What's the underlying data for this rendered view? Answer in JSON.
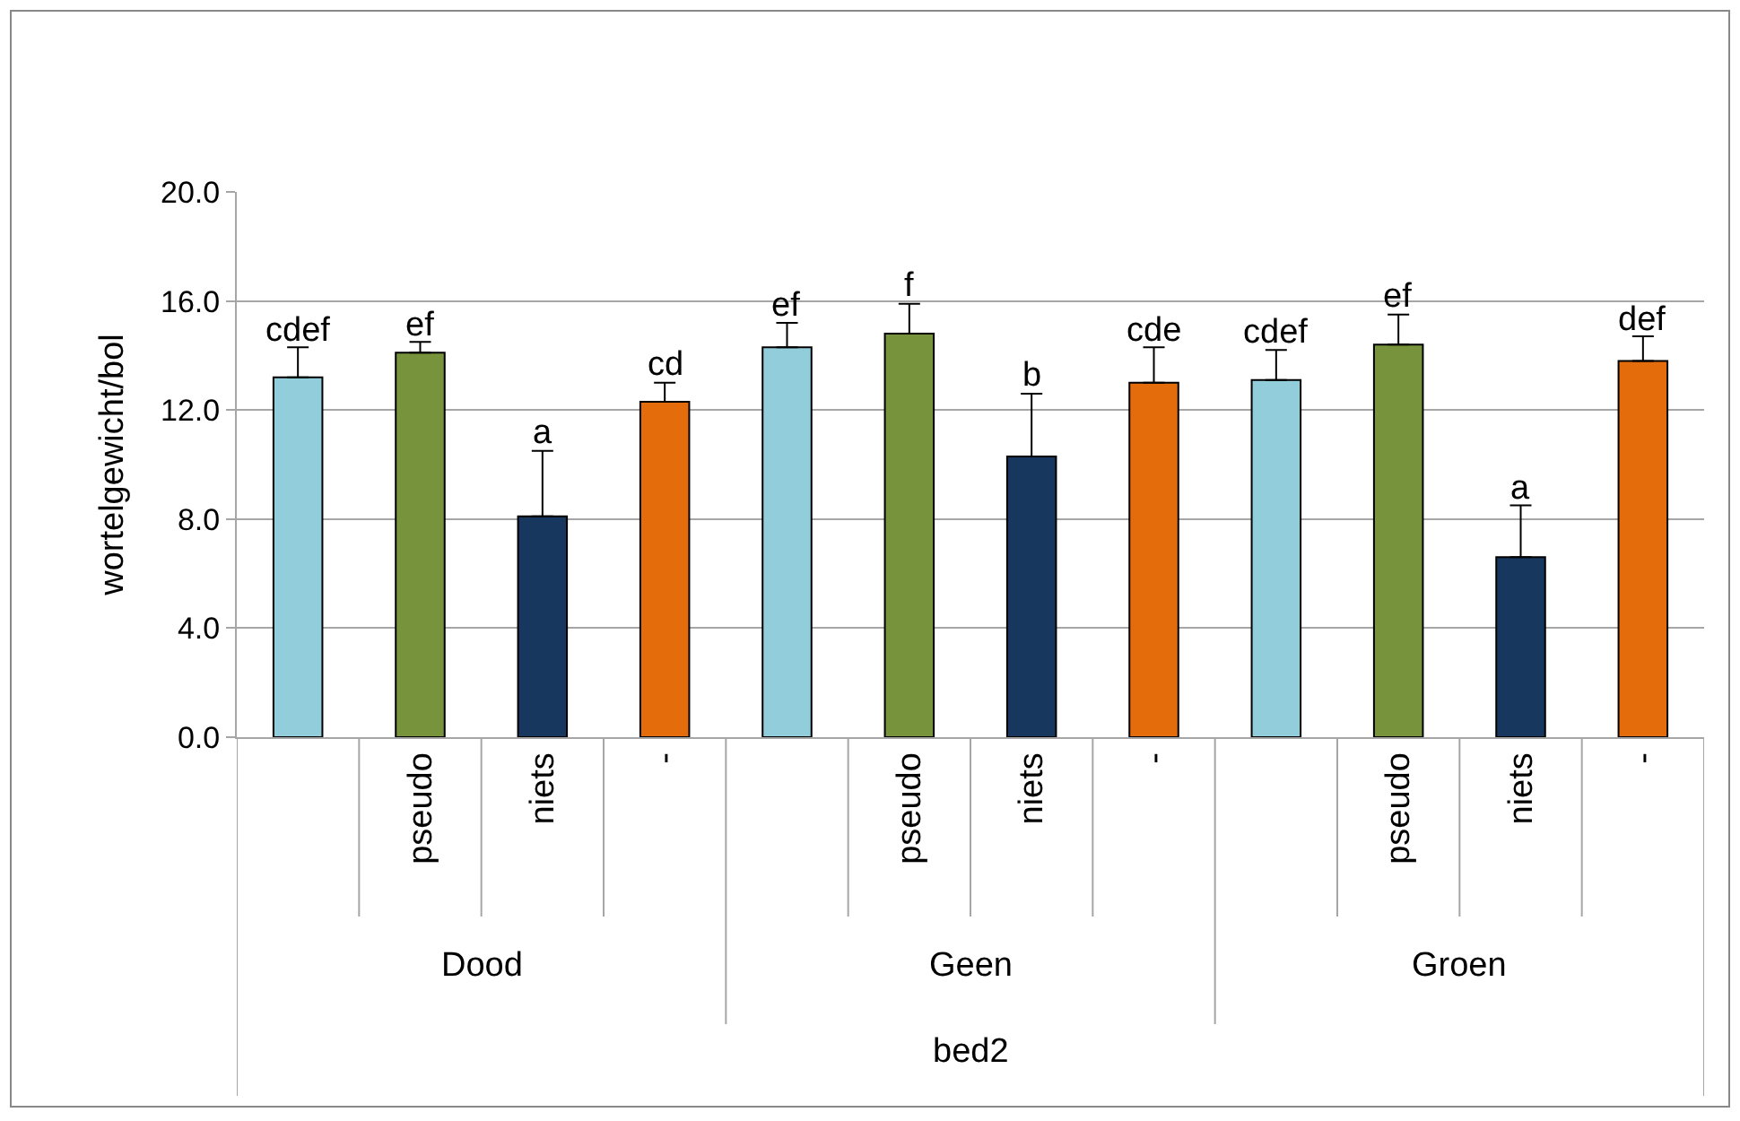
{
  "chart_data": {
    "type": "bar",
    "ylabel": "wortelgewicht/bol",
    "xlabel": "bed2",
    "categories": [
      null,
      "pseudo",
      "niets",
      "-",
      null,
      "pseudo",
      "niets",
      "-",
      null,
      "pseudo",
      "niets",
      "-"
    ],
    "values": [
      13.2,
      14.1,
      8.1,
      12.3,
      14.3,
      14.8,
      10.3,
      13.0,
      13.1,
      14.4,
      6.6,
      13.8
    ],
    "errors": [
      [
        13.2,
        14.3
      ],
      [
        14.1,
        14.5
      ],
      [
        8.1,
        10.5
      ],
      [
        12.3,
        13.0
      ],
      [
        14.3,
        15.2
      ],
      [
        14.8,
        15.9
      ],
      [
        10.3,
        12.6
      ],
      [
        13.0,
        14.3
      ],
      [
        13.1,
        14.2
      ],
      [
        14.4,
        15.5
      ],
      [
        6.6,
        8.5
      ],
      [
        13.8,
        14.7
      ]
    ],
    "value_labels": [
      "cdef",
      "ef",
      "a",
      "cd",
      "ef",
      "f",
      "b",
      "cde",
      "cdef",
      "ef",
      "a",
      "def"
    ],
    "colors": [
      "#92cddc",
      "#77933c",
      "#17375e",
      "#e46c0a",
      "#92cddc",
      "#77933c",
      "#17375e",
      "#e46c0a",
      "#92cddc",
      "#77933c",
      "#17375e",
      "#e46c0a"
    ],
    "annotations": [
      "Dood",
      "Geen",
      "Groen"
    ],
    "ylim": [
      0,
      20
    ],
    "yticks": [
      {
        "value": 0,
        "label": "0.0"
      },
      {
        "value": 4,
        "label": "4.0"
      },
      {
        "value": 8,
        "label": "8.0"
      },
      {
        "value": 12,
        "label": "12.0"
      },
      {
        "value": 16,
        "label": "16.0"
      },
      {
        "value": 20,
        "label": "20.0"
      }
    ],
    "grid": "y"
  }
}
